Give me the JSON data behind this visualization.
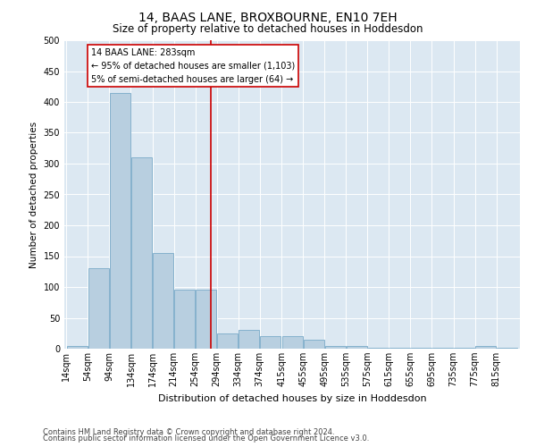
{
  "title": "14, BAAS LANE, BROXBOURNE, EN10 7EH",
  "subtitle": "Size of property relative to detached houses in Hoddesdon",
  "xlabel": "Distribution of detached houses by size in Hoddesdon",
  "ylabel": "Number of detached properties",
  "footnote1": "Contains HM Land Registry data © Crown copyright and database right 2024.",
  "footnote2": "Contains public sector information licensed under the Open Government Licence v3.0.",
  "annotation_line1": "14 BAAS LANE: 283sqm",
  "annotation_line2": "← 95% of detached houses are smaller (1,103)",
  "annotation_line3": "5% of semi-detached houses are larger (64) →",
  "property_sqm": 283,
  "bar_color": "#b8cfe0",
  "bar_edge_color": "#7aaac8",
  "vline_color": "#cc0000",
  "background_color": "#dce8f2",
  "annotation_box_color": "#ffffff",
  "annotation_box_edge": "#cc0000",
  "categories": [
    "14sqm",
    "54sqm",
    "94sqm",
    "134sqm",
    "174sqm",
    "214sqm",
    "254sqm",
    "294sqm",
    "334sqm",
    "374sqm",
    "415sqm",
    "455sqm",
    "495sqm",
    "535sqm",
    "575sqm",
    "615sqm",
    "655sqm",
    "695sqm",
    "735sqm",
    "775sqm",
    "815sqm"
  ],
  "bin_starts": [
    14,
    54,
    94,
    134,
    174,
    214,
    254,
    294,
    334,
    374,
    415,
    455,
    495,
    535,
    575,
    615,
    655,
    695,
    735,
    775,
    815
  ],
  "bin_width": 40,
  "bar_heights": [
    5,
    130,
    415,
    310,
    155,
    95,
    95,
    25,
    30,
    20,
    20,
    15,
    5,
    5,
    2,
    1,
    1,
    1,
    1,
    5,
    1
  ],
  "ylim": [
    0,
    500
  ],
  "yticks": [
    0,
    50,
    100,
    150,
    200,
    250,
    300,
    350,
    400,
    450,
    500
  ],
  "title_fontsize": 10,
  "subtitle_fontsize": 8.5,
  "xlabel_fontsize": 8,
  "ylabel_fontsize": 7.5,
  "tick_fontsize": 7,
  "annotation_fontsize": 7,
  "footnote_fontsize": 6
}
